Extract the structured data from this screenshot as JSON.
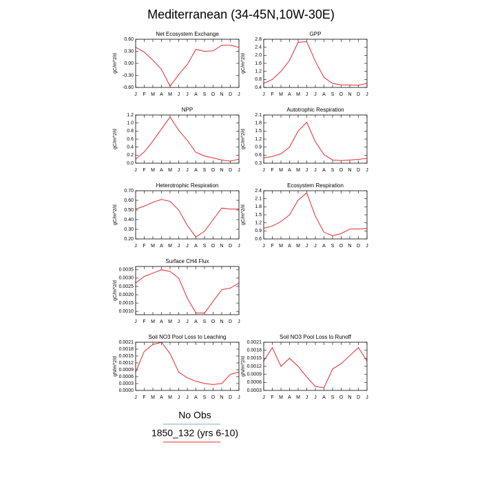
{
  "title": "Mediterranean (34-45N,10W-30E)",
  "legend": [
    {
      "name": "No Obs",
      "color": "#8fa3b8"
    },
    {
      "name": "1850_132 (yrs 6-10)",
      "color": "#e8272a"
    }
  ],
  "chart_data": [
    {
      "type": "line",
      "title": "Net Ecosystem Exchange",
      "ylabel": "gC/m^2/d",
      "color": "#e8272a",
      "categories": [
        "J",
        "F",
        "M",
        "A",
        "M",
        "J",
        "J",
        "A",
        "S",
        "O",
        "N",
        "D",
        "J"
      ],
      "values": [
        0.4,
        0.28,
        0.08,
        -0.15,
        -0.57,
        -0.28,
        -0.03,
        0.35,
        0.3,
        0.31,
        0.45,
        0.45,
        0.4
      ],
      "ylim": [
        -0.6,
        0.6
      ],
      "yticks": [
        {
          "value": -0.6,
          "label": "-0.60"
        },
        {
          "value": -0.3,
          "label": "-0.30"
        },
        {
          "value": 0,
          "label": "0.00"
        },
        {
          "value": 0.3,
          "label": "0.30"
        },
        {
          "value": 0.6,
          "label": "0.60"
        }
      ]
    },
    {
      "type": "line",
      "title": "GPP",
      "ylabel": "gC/m^2/d",
      "color": "#e8272a",
      "categories": [
        "J",
        "F",
        "M",
        "A",
        "M",
        "J",
        "J",
        "A",
        "S",
        "O",
        "N",
        "D",
        "J"
      ],
      "values": [
        0.6,
        0.8,
        1.2,
        1.75,
        2.65,
        2.68,
        1.7,
        0.9,
        0.6,
        0.53,
        0.52,
        0.51,
        0.6
      ],
      "ylim": [
        0.4,
        2.8
      ],
      "yticks": [
        0.4,
        0.8,
        1.2,
        1.6,
        {
          "value": 2,
          "label": "2.0"
        },
        2.4,
        2.8
      ]
    },
    {
      "type": "line",
      "title": "NPP",
      "ylabel": "gC/m^2/d",
      "color": "#e8272a",
      "categories": [
        "J",
        "F",
        "M",
        "A",
        "M",
        "J",
        "J",
        "A",
        "S",
        "O",
        "N",
        "D",
        "J"
      ],
      "values": [
        0.1,
        0.28,
        0.55,
        0.85,
        1.15,
        0.82,
        0.57,
        0.27,
        0.18,
        0.13,
        0.08,
        0.05,
        0.1
      ],
      "ylim": [
        0,
        1.2
      ],
      "yticks": [
        {
          "value": 0,
          "label": "0.0"
        },
        0.2,
        0.4,
        0.6,
        0.8,
        {
          "value": 1,
          "label": "1.0"
        },
        1.2
      ]
    },
    {
      "type": "line",
      "title": "Autotrophic Respiration",
      "ylabel": "gC/m^2/d",
      "color": "#e8272a",
      "categories": [
        "J",
        "F",
        "M",
        "A",
        "M",
        "J",
        "J",
        "A",
        "S",
        "O",
        "N",
        "D",
        "J"
      ],
      "values": [
        0.5,
        0.55,
        0.65,
        0.9,
        1.5,
        1.83,
        1.1,
        0.62,
        0.42,
        0.4,
        0.42,
        0.44,
        0.48
      ],
      "ylim": [
        0.3,
        2.1
      ],
      "yticks": [
        0.3,
        0.6,
        0.9,
        1.2,
        1.5,
        1.8,
        2.1
      ]
    },
    {
      "type": "line",
      "title": "Heterotrophic Respiration",
      "ylabel": "gC/m^2/d",
      "color": "#e8272a",
      "categories": [
        "J",
        "F",
        "M",
        "A",
        "M",
        "J",
        "J",
        "A",
        "S",
        "O",
        "N",
        "D",
        "J"
      ],
      "values": [
        0.51,
        0.54,
        0.58,
        0.61,
        0.59,
        0.5,
        0.34,
        0.22,
        0.28,
        0.4,
        0.52,
        0.51,
        0.51
      ],
      "ylim": [
        0.2,
        0.7
      ],
      "yticks": [
        {
          "value": 0.2,
          "label": "0.20"
        },
        {
          "value": 0.3,
          "label": "0.30"
        },
        {
          "value": 0.4,
          "label": "0.40"
        },
        {
          "value": 0.5,
          "label": "0.50"
        },
        {
          "value": 0.6,
          "label": "0.60"
        },
        {
          "value": 0.7,
          "label": "0.70"
        }
      ]
    },
    {
      "type": "line",
      "title": "Ecosystem Respiration",
      "ylabel": "gC/m^2/d",
      "color": "#e8272a",
      "categories": [
        "J",
        "F",
        "M",
        "A",
        "M",
        "J",
        "J",
        "A",
        "S",
        "O",
        "N",
        "D",
        "J"
      ],
      "values": [
        1.0,
        1.08,
        1.25,
        1.5,
        2.05,
        2.32,
        1.45,
        0.85,
        0.72,
        0.8,
        0.97,
        0.97,
        1.0
      ],
      "ylim": [
        0.6,
        2.4
      ],
      "yticks": [
        0.6,
        0.9,
        1.2,
        1.5,
        1.8,
        2.1,
        2.4
      ]
    },
    {
      "type": "line",
      "title": "Surface CH4 Flux",
      "ylabel": "gC/m^2/d",
      "color": "#e8272a",
      "categories": [
        "J",
        "F",
        "M",
        "A",
        "M",
        "J",
        "J",
        "A",
        "S",
        "O",
        "N",
        "D",
        "J"
      ],
      "values": [
        0.0027,
        0.0031,
        0.0033,
        0.0035,
        0.0034,
        0.003,
        0.0018,
        0.0009,
        0.0009,
        0.0016,
        0.0023,
        0.0024,
        0.0027
      ],
      "ylim": [
        0.0008,
        0.0037
      ],
      "yticks": [
        {
          "value": 0.001,
          "label": "0.0010"
        },
        {
          "value": 0.0015,
          "label": "0.0015"
        },
        {
          "value": 0.002,
          "label": "0.0020"
        },
        {
          "value": 0.0025,
          "label": "0.0025"
        },
        {
          "value": 0.003,
          "label": "0.0030"
        },
        {
          "value": 0.0035,
          "label": "0.0035"
        }
      ]
    },
    {
      "type": "line",
      "title": "Soil NO3 Pool Loss to Leaching",
      "ylabel": "gN/m^2/d",
      "color": "#e8272a",
      "categories": [
        "J",
        "F",
        "M",
        "A",
        "M",
        "J",
        "J",
        "A",
        "S",
        "O",
        "N",
        "D",
        "J"
      ],
      "values": [
        0.0008,
        0.0017,
        0.002,
        0.0021,
        0.0016,
        0.0008,
        0.00055,
        0.0004,
        0.0003,
        0.00026,
        0.0003,
        0.0007,
        0.0008
      ],
      "ylim": [
        0,
        0.0021
      ],
      "yticks": [
        {
          "value": 0,
          "label": "0.0000"
        },
        0.0003,
        0.0006,
        0.0009,
        0.0012,
        0.0015,
        0.0018,
        0.0021
      ]
    },
    {
      "type": "line",
      "title": "Soil NO3 Pool Loss to Runoff",
      "ylabel": "gN/m^2/d",
      "color": "#e8272a",
      "categories": [
        "J",
        "F",
        "M",
        "A",
        "M",
        "J",
        "J",
        "A",
        "S",
        "O",
        "N",
        "D",
        "J"
      ],
      "values": [
        0.0014,
        0.0019,
        0.0012,
        0.0015,
        0.0012,
        0.0008,
        0.00045,
        0.0004,
        0.0011,
        0.0013,
        0.0016,
        0.0019,
        0.0014
      ],
      "ylim": [
        0.0003,
        0.0021
      ],
      "yticks": [
        0.0003,
        0.0006,
        0.0009,
        0.0012,
        0.0015,
        0.0018,
        0.0021
      ]
    }
  ]
}
